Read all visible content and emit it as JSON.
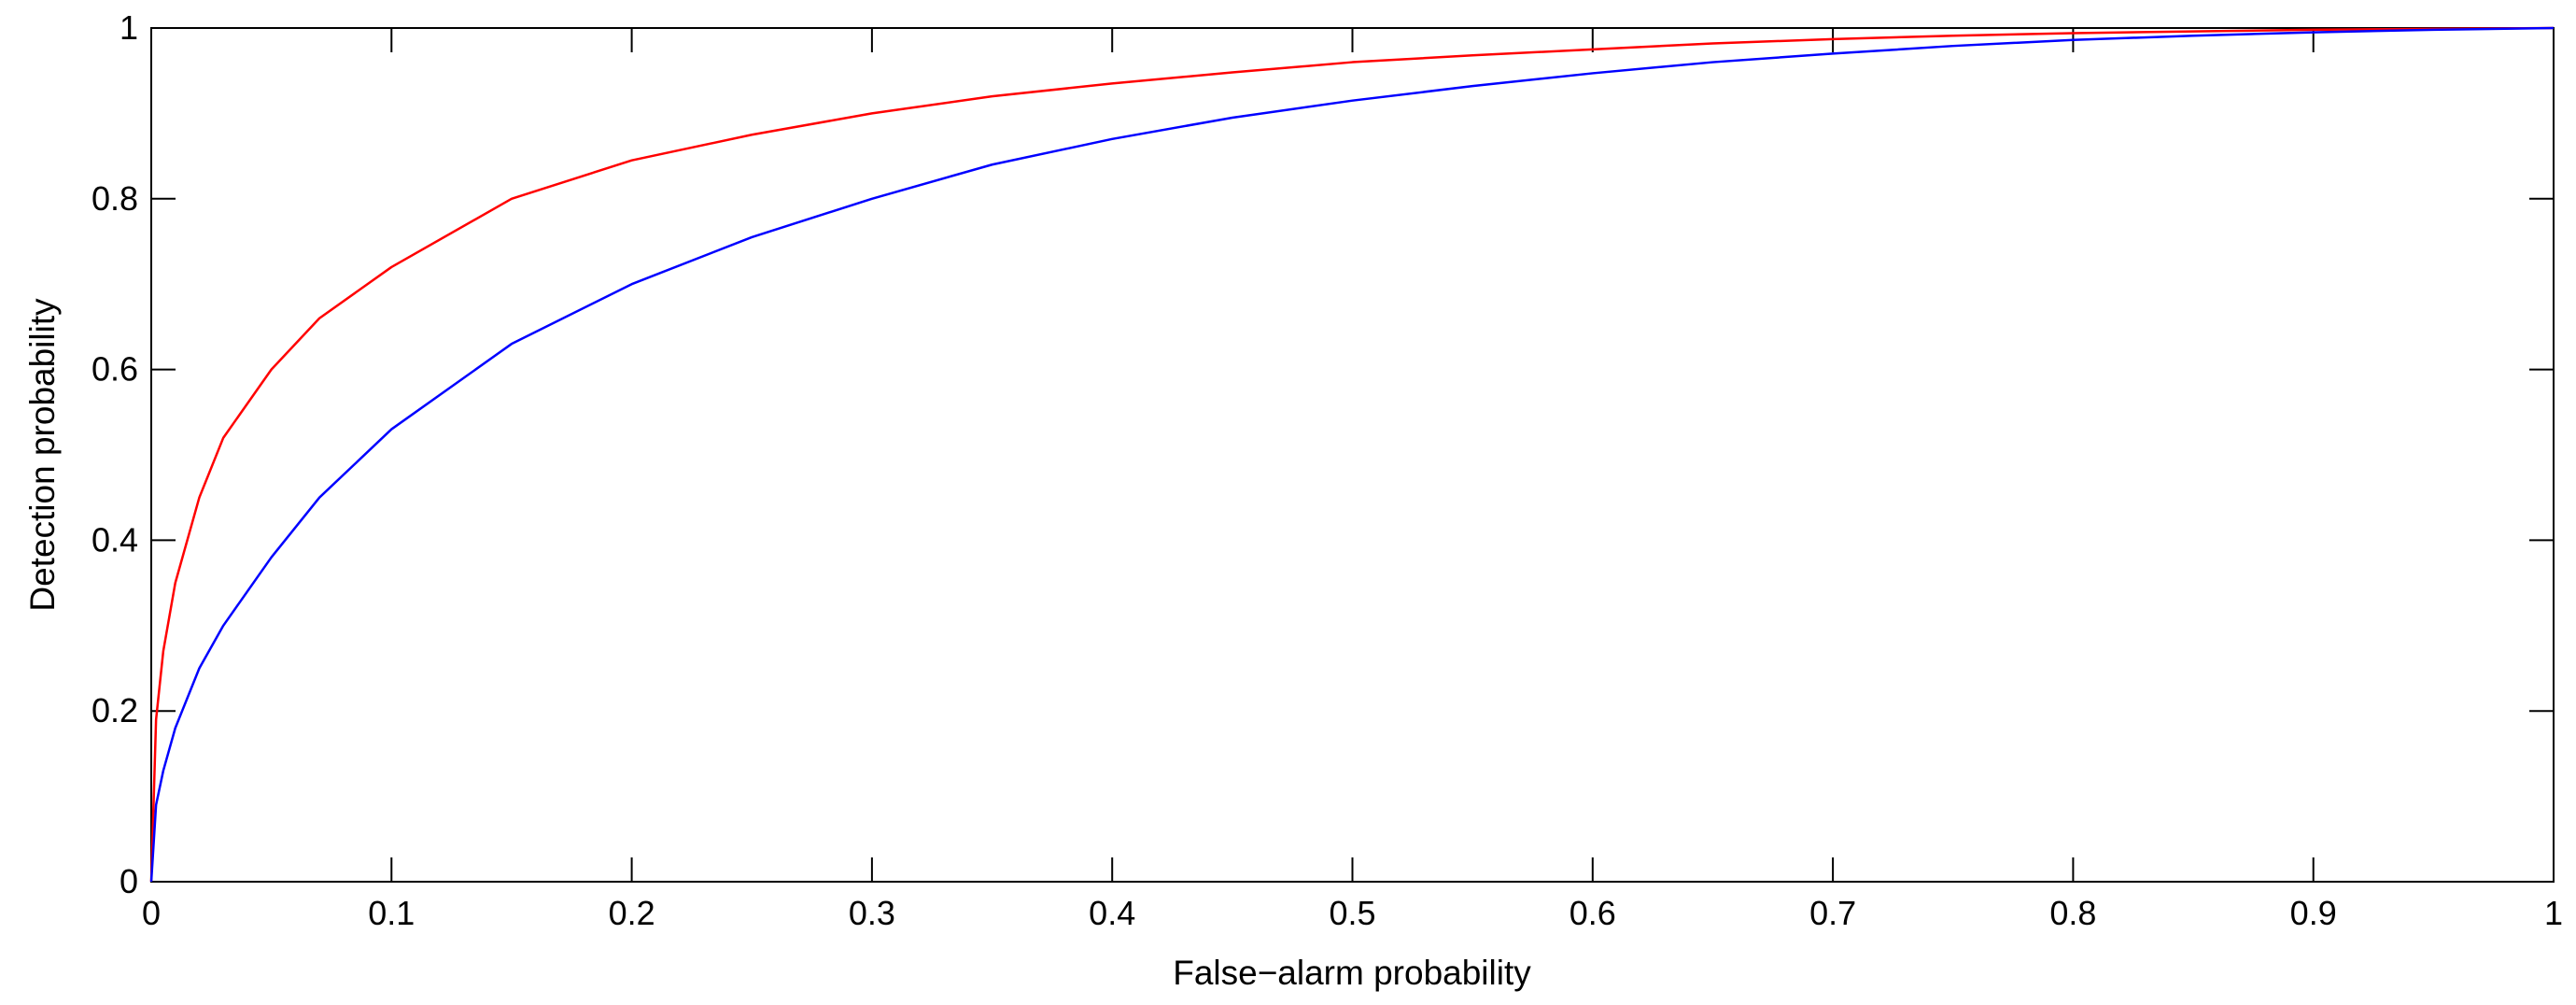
{
  "chart_data": {
    "type": "line",
    "title": "",
    "xlabel": "False−alarm probability",
    "ylabel": "Detection probability",
    "xlim": [
      0,
      1
    ],
    "ylim": [
      0,
      1
    ],
    "xticks": [
      0,
      0.1,
      0.2,
      0.3,
      0.4,
      0.5,
      0.6,
      0.7,
      0.8,
      0.9,
      1
    ],
    "xtick_labels": [
      "0",
      "0.1",
      "0.2",
      "0.3",
      "0.4",
      "0.5",
      "0.6",
      "0.7",
      "0.8",
      "0.9",
      "1"
    ],
    "yticks": [
      0,
      0.2,
      0.4,
      0.6,
      0.8,
      1
    ],
    "ytick_labels": [
      "0",
      "0.2",
      "0.4",
      "0.6",
      "0.8",
      "1"
    ],
    "grid": false,
    "legend": "none",
    "series": [
      {
        "color": "#ff0000",
        "x": [
          0,
          0.002,
          0.005,
          0.01,
          0.02,
          0.03,
          0.05,
          0.07,
          0.1,
          0.15,
          0.2,
          0.25,
          0.3,
          0.35,
          0.4,
          0.45,
          0.5,
          0.55,
          0.6,
          0.65,
          0.7,
          0.75,
          0.8,
          0.85,
          0.9,
          0.95,
          1
        ],
        "y": [
          0,
          0.19,
          0.27,
          0.35,
          0.45,
          0.52,
          0.6,
          0.66,
          0.72,
          0.8,
          0.845,
          0.875,
          0.9,
          0.92,
          0.935,
          0.948,
          0.96,
          0.968,
          0.975,
          0.982,
          0.987,
          0.991,
          0.994,
          0.996,
          0.998,
          0.999,
          1
        ]
      },
      {
        "color": "#0000ff",
        "x": [
          0,
          0.002,
          0.005,
          0.01,
          0.02,
          0.03,
          0.05,
          0.07,
          0.1,
          0.15,
          0.2,
          0.25,
          0.3,
          0.35,
          0.4,
          0.45,
          0.5,
          0.55,
          0.6,
          0.65,
          0.7,
          0.75,
          0.8,
          0.85,
          0.9,
          0.95,
          1
        ],
        "y": [
          0,
          0.09,
          0.13,
          0.18,
          0.25,
          0.3,
          0.38,
          0.45,
          0.53,
          0.63,
          0.7,
          0.755,
          0.8,
          0.84,
          0.87,
          0.895,
          0.915,
          0.932,
          0.947,
          0.96,
          0.97,
          0.979,
          0.986,
          0.991,
          0.995,
          0.998,
          1
        ]
      }
    ]
  }
}
